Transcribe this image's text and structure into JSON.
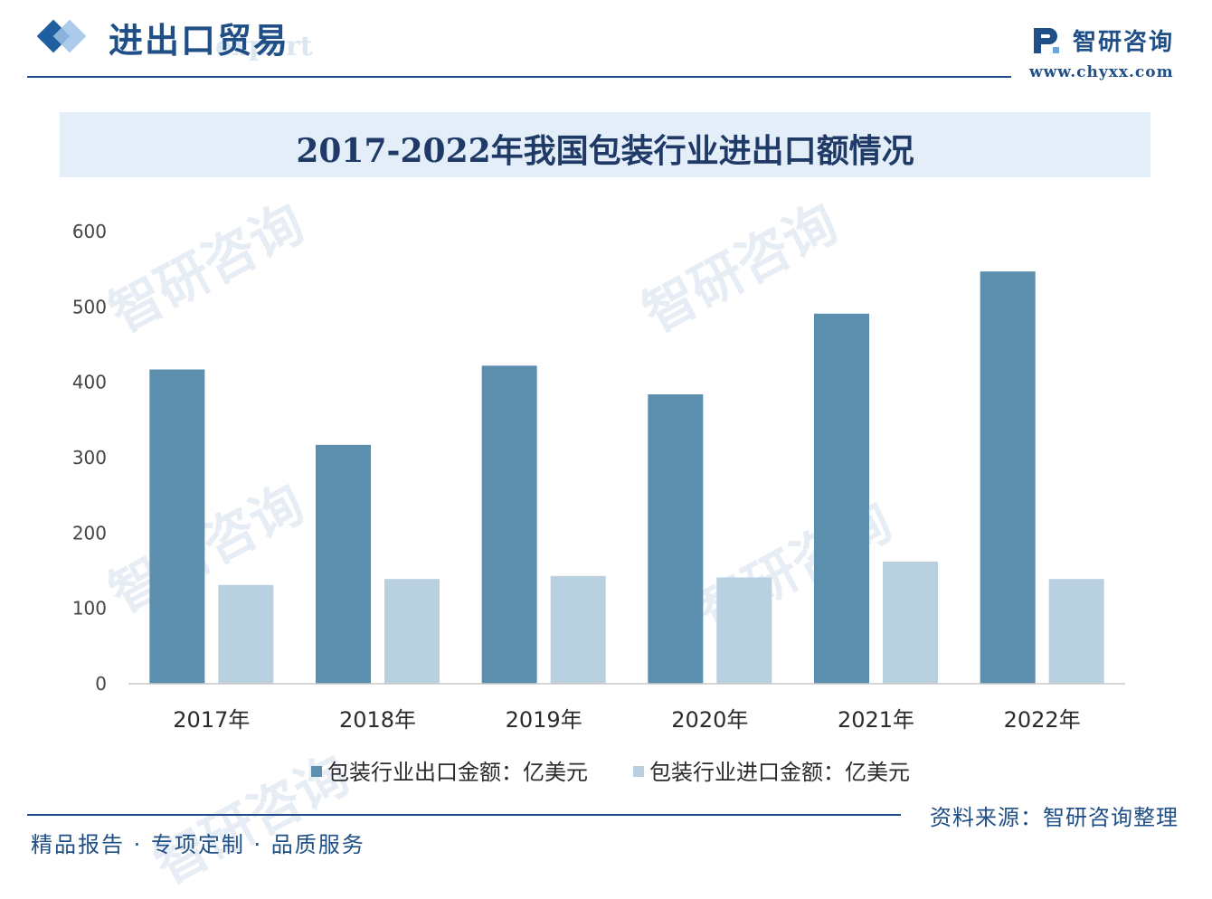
{
  "header": {
    "section_title": "进出口贸易",
    "section_sub": "export",
    "brand_name": "智研咨询",
    "brand_url": "www.chyxx.com"
  },
  "watermark": "智研咨询",
  "footer": {
    "source": "资料来源：智研咨询整理",
    "tagline": "精品报告 · 专项定制 · 品质服务"
  },
  "colors": {
    "export": "#5b8fad",
    "import": "#b8d0e0",
    "brand": "#1f4f86"
  },
  "chart_data": {
    "type": "bar",
    "title": "2017-2022年我国包装行业进出口额情况",
    "categories": [
      "2017年",
      "2018年",
      "2019年",
      "2020年",
      "2021年",
      "2022年"
    ],
    "series": [
      {
        "name": "包装行业出口金额：亿美元",
        "values": [
          417,
          317,
          422,
          384,
          491,
          547
        ]
      },
      {
        "name": "包装行业进口金额：亿美元",
        "values": [
          131,
          139,
          143,
          141,
          162,
          139
        ]
      }
    ],
    "yticks": [
      0,
      100,
      200,
      300,
      400,
      500,
      600
    ],
    "ylim": [
      0,
      600
    ],
    "grid": false,
    "legend_position": "bottom"
  }
}
